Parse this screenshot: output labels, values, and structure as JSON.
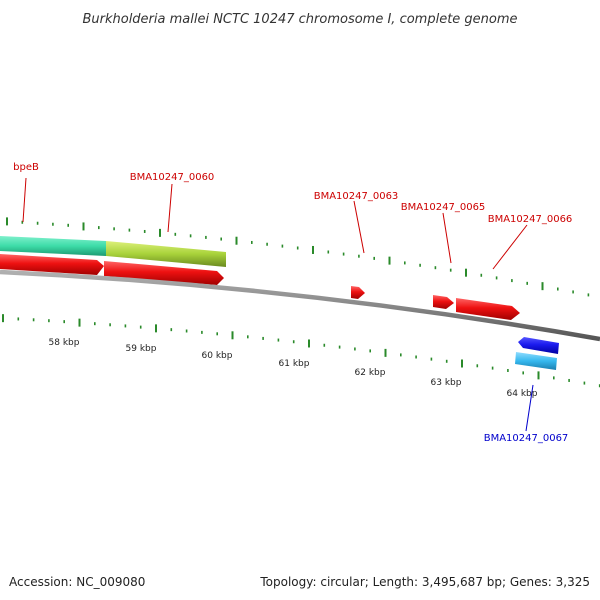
{
  "title": "Burkholderia mallei NCTC 10247 chromosome I, complete genome",
  "footer": {
    "accession": "Accession: NC_009080",
    "summary": "Topology: circular; Length: 3,495,687 bp; Genes: 3,325"
  },
  "colors": {
    "cds_forward": "#ee1111",
    "cds_reverse": "#1a1aee",
    "rna_teal": "#3ddca8",
    "rna_green": "#a8d23a",
    "rna_cyan": "#35b8ee",
    "label_red": "#cc0000",
    "label_blue": "#0000cc",
    "tick": "#2a8a2a",
    "backbone": "#888888"
  },
  "scale_ticks": [
    {
      "label": "58 kbp"
    },
    {
      "label": "59 kbp"
    },
    {
      "label": "60 kbp"
    },
    {
      "label": "61 kbp"
    },
    {
      "label": "62 kbp"
    },
    {
      "label": "63 kbp"
    },
    {
      "label": "64 kbp"
    }
  ],
  "gene_labels": [
    {
      "name": "bpeB",
      "strand": "forward"
    },
    {
      "name": "BMA10247_0060",
      "strand": "forward"
    },
    {
      "name": "BMA10247_0063",
      "strand": "forward"
    },
    {
      "name": "BMA10247_0065",
      "strand": "forward"
    },
    {
      "name": "BMA10247_0066",
      "strand": "forward"
    },
    {
      "name": "BMA10247_0067",
      "strand": "reverse"
    }
  ]
}
